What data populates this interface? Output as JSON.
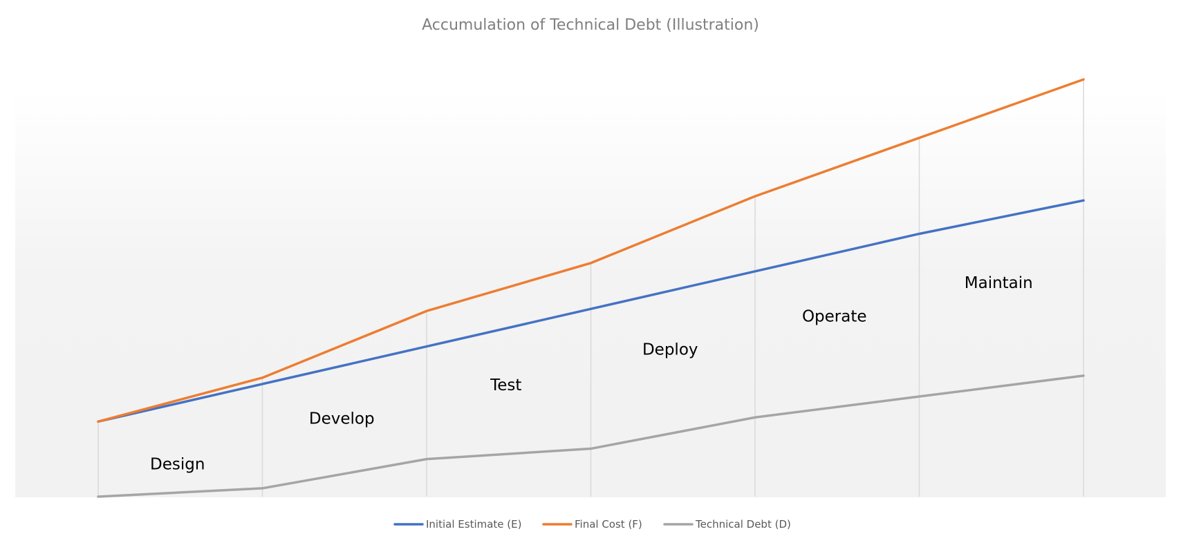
{
  "chart_data": {
    "type": "line",
    "title": "Accumulation of Technical Debt (Illustration)",
    "xlabel": "",
    "ylabel": "",
    "x": [
      0,
      1,
      2,
      3,
      4,
      5,
      6
    ],
    "ylim": [
      0,
      100
    ],
    "grid": "vertical",
    "legend_position": "bottom",
    "series": [
      {
        "name": "Initial Estimate (E)",
        "color": "#4472c4",
        "values": [
          18,
          27,
          36,
          45,
          54,
          63,
          71
        ]
      },
      {
        "name": "Final Cost (F)",
        "color": "#ed7d31",
        "values": [
          18,
          28.5,
          44.5,
          56,
          72,
          86,
          100
        ]
      },
      {
        "name": "Technical Debt (D)",
        "color": "#a5a5a5",
        "values": [
          0,
          2,
          9,
          11.5,
          19,
          24,
          29
        ]
      }
    ],
    "annotations": [
      {
        "text": "Design",
        "x": 0.5,
        "y": 6.5
      },
      {
        "text": "Develop",
        "x": 1.5,
        "y": 17.5
      },
      {
        "text": "Test",
        "x": 2.5,
        "y": 25.5
      },
      {
        "text": "Deploy",
        "x": 3.5,
        "y": 34
      },
      {
        "text": "Operate",
        "x": 4.5,
        "y": 42
      },
      {
        "text": "Maintain",
        "x": 5.5,
        "y": 50
      }
    ]
  }
}
